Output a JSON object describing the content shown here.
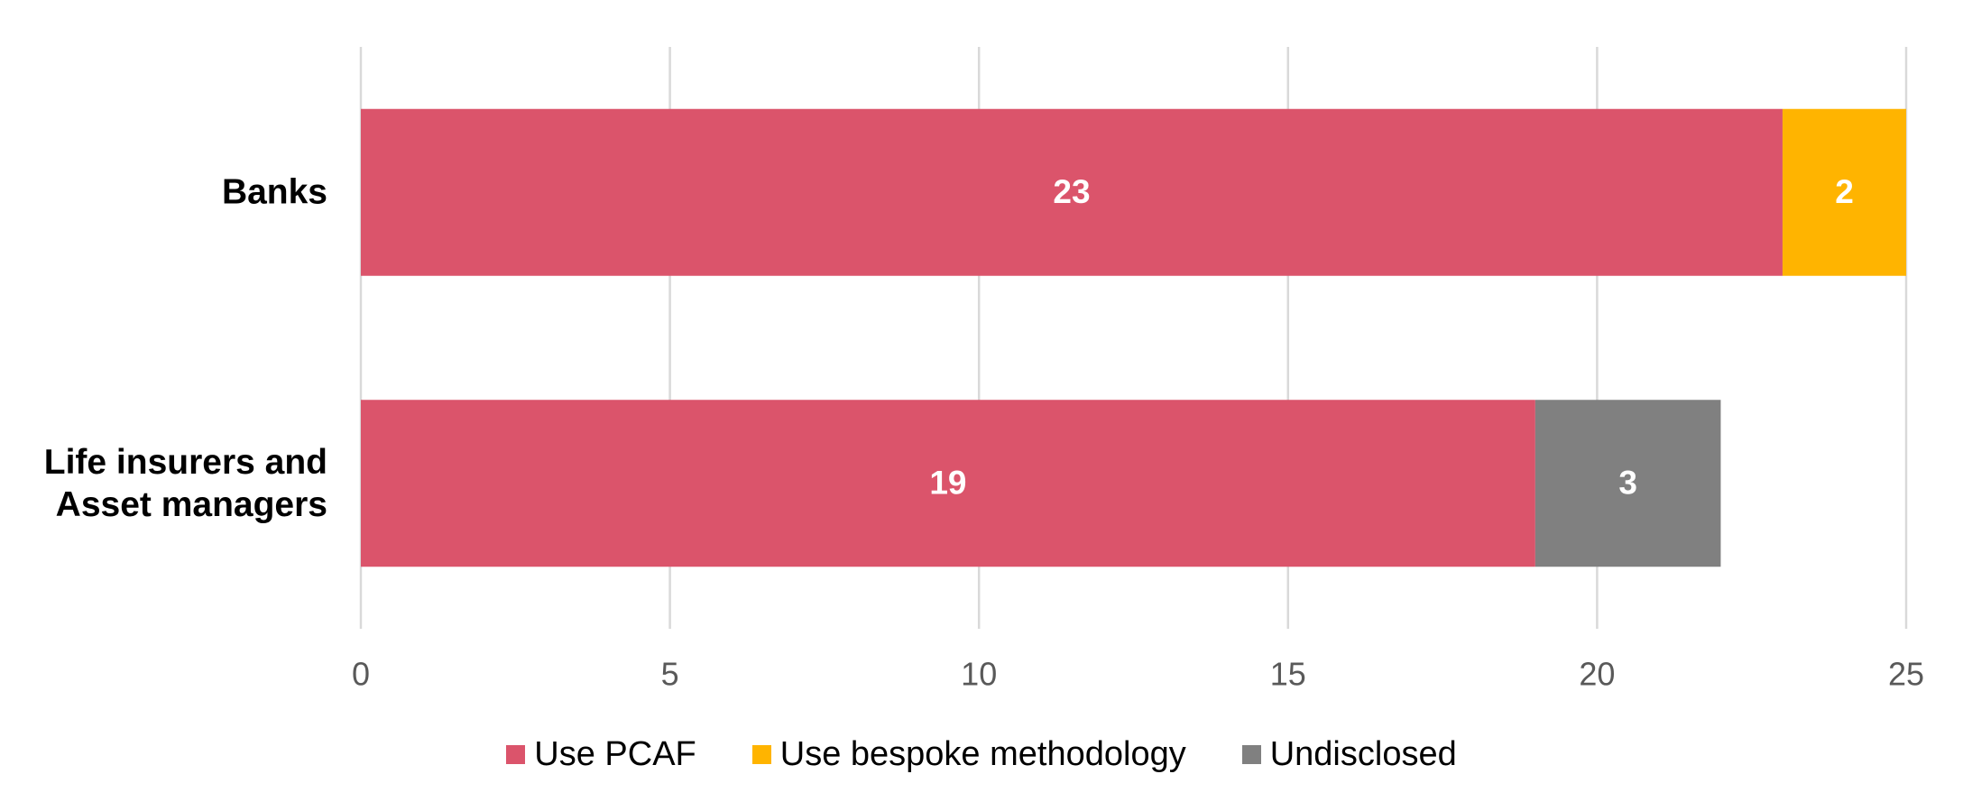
{
  "chart_data": {
    "type": "stacked-bar-horizontal",
    "categories": [
      "Banks",
      "Life insurers and Asset managers"
    ],
    "series": [
      {
        "name": "Use PCAF",
        "color": "#db546b",
        "values": [
          23,
          19
        ]
      },
      {
        "name": "Use bespoke methodology",
        "color": "#ffb400",
        "values": [
          2,
          null
        ]
      },
      {
        "name": "Undisclosed",
        "color": "#808080",
        "values": [
          null,
          3
        ]
      }
    ],
    "xlim": [
      0,
      25
    ],
    "xticks": [
      0,
      5,
      10,
      15,
      20,
      25
    ],
    "grid": true,
    "legend": "bottom"
  }
}
